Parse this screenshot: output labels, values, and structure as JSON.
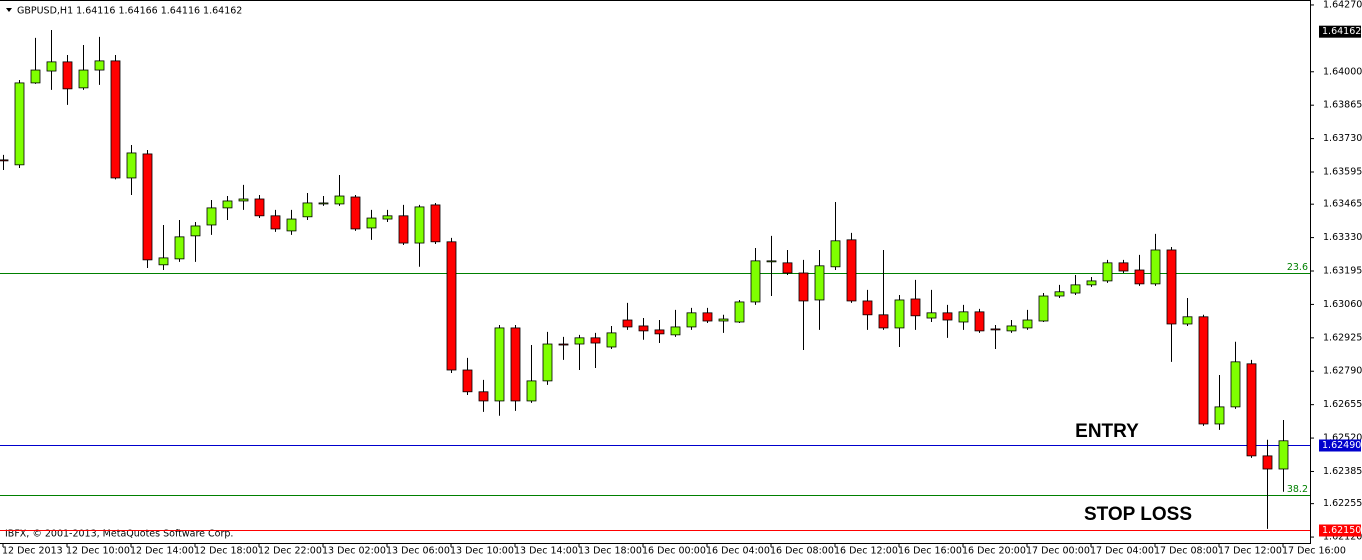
{
  "chart_data": {
    "type": "candlestick",
    "title": "GBPUSD,H1  1.64116 1.64166 1.64116 1.64162",
    "footer": "IBFX, © 2001-2013, MetaQuotes Software Corp.",
    "annotations": [
      "ENTRY",
      "STOP LOSS"
    ],
    "up_color": "#7fff00",
    "down_color": "#ff0000",
    "categories": [
      "12 Dec 2013",
      null,
      null,
      null,
      "12 Dec 10:00",
      null,
      null,
      null,
      "12 Dec 14:00",
      null,
      null,
      null,
      "12 Dec 18:00",
      null,
      null,
      null,
      "12 Dec 22:00",
      null,
      null,
      null,
      "13 Dec 02:00",
      null,
      null,
      null,
      "13 Dec 06:00",
      null,
      null,
      null,
      "13 Dec 10:00",
      null,
      null,
      null,
      "13 Dec 14:00",
      null,
      null,
      null,
      "13 Dec 18:00",
      null,
      null,
      null,
      "16 Dec 00:00",
      null,
      null,
      null,
      "16 Dec 04:00",
      null,
      null,
      null,
      "16 Dec 08:00",
      null,
      null,
      null,
      "16 Dec 12:00",
      null,
      null,
      null,
      "16 Dec 16:00",
      null,
      null,
      null,
      "16 Dec 20:00",
      null,
      null,
      null,
      "17 Dec 00:00",
      null,
      null,
      null,
      "17 Dec 04:00",
      null,
      null,
      null,
      "17 Dec 08:00",
      null,
      null,
      null,
      "17 Dec 12:00",
      null,
      null,
      null,
      "17 Dec 16:00"
    ],
    "open": [
      1.63644,
      1.63624,
      1.63955,
      1.64003,
      1.6404,
      1.63935,
      1.64007,
      1.64044,
      1.63571,
      1.63668,
      1.6322,
      1.63244,
      1.63337,
      1.63381,
      1.6345,
      1.63478,
      1.63486,
      1.63418,
      1.63357,
      1.63414,
      1.63466,
      1.63466,
      1.63494,
      1.63369,
      1.63405,
      1.63418,
      1.63308,
      1.63462,
      1.63313,
      1.62795,
      1.62707,
      1.6267,
      1.62965,
      1.6267,
      1.62751,
      1.629,
      1.629,
      1.62925,
      1.62888,
      1.62997,
      1.62973,
      1.62957,
      1.62937,
      1.62969,
      1.63026,
      1.62993,
      1.62989,
      1.6307,
      1.63232,
      1.63228,
      1.63187,
      1.63078,
      1.63212,
      1.63321,
      1.63074,
      1.63018,
      1.62965,
      1.63082,
      1.63005,
      1.63026,
      1.62989,
      1.6303,
      1.62961,
      1.62953,
      1.62965,
      1.62993,
      1.63094,
      1.63106,
      1.63139,
      1.63155,
      1.63228,
      1.63199,
      1.63143,
      1.6328,
      1.62981,
      1.6301,
      1.62577,
      1.62646,
      1.6282,
      1.62448,
      1.62395
    ],
    "high": [
      1.63664,
      1.63967,
      1.64137,
      1.64169,
      1.64068,
      1.64108,
      1.64141,
      1.64068,
      1.63704,
      1.63684,
      1.63381,
      1.63401,
      1.63393,
      1.63482,
      1.63498,
      1.63543,
      1.63502,
      1.63442,
      1.63442,
      1.6351,
      1.63498,
      1.63583,
      1.63502,
      1.63442,
      1.63442,
      1.63462,
      1.63462,
      1.6347,
      1.63329,
      1.62844,
      1.62755,
      1.62977,
      1.62977,
      1.62896,
      1.62949,
      1.62929,
      1.62937,
      1.62945,
      1.62973,
      1.63066,
      1.63005,
      1.62997,
      1.63038,
      1.63046,
      1.63046,
      1.63018,
      1.63078,
      1.63288,
      1.63337,
      1.6328,
      1.6324,
      1.6328,
      1.63474,
      1.63349,
      1.63119,
      1.6328,
      1.63098,
      1.63159,
      1.63119,
      1.63058,
      1.63058,
      1.63042,
      1.62977,
      1.62997,
      1.63038,
      1.63106,
      1.63139,
      1.63179,
      1.63171,
      1.6324,
      1.6324,
      1.6326,
      1.63345,
      1.63292,
      1.63086,
      1.63018,
      1.62775,
      1.62909,
      1.62836,
      1.62513,
      1.62593
    ],
    "low": [
      1.63603,
      1.63611,
      1.63951,
      1.63927,
      1.63866,
      1.63927,
      1.63947,
      1.63565,
      1.63502,
      1.63207,
      1.63199,
      1.63232,
      1.63232,
      1.63341,
      1.63401,
      1.63442,
      1.63409,
      1.63353,
      1.63341,
      1.63401,
      1.63458,
      1.63458,
      1.63357,
      1.63321,
      1.63393,
      1.633,
      1.63212,
      1.63304,
      1.62783,
      1.62694,
      1.62626,
      1.6261,
      1.6263,
      1.62662,
      1.62735,
      1.62836,
      1.62795,
      1.62803,
      1.6288,
      1.62957,
      1.62917,
      1.62904,
      1.62929,
      1.62957,
      1.62985,
      1.62945,
      1.62985,
      1.63058,
      1.63094,
      1.63179,
      1.62876,
      1.62957,
      1.63199,
      1.63066,
      1.62957,
      1.62957,
      1.62888,
      1.62957,
      1.62989,
      1.62925,
      1.62957,
      1.62945,
      1.6288,
      1.62945,
      1.62957,
      1.62989,
      1.63086,
      1.63098,
      1.63131,
      1.63147,
      1.63187,
      1.63135,
      1.63135,
      1.62828,
      1.62973,
      1.62569,
      1.62553,
      1.62638,
      1.6244,
      1.62153,
      1.62303
    ],
    "close": [
      1.6364,
      1.63955,
      1.64007,
      1.6404,
      1.63931,
      1.64007,
      1.64044,
      1.63571,
      1.63672,
      1.6324,
      1.63248,
      1.63333,
      1.63377,
      1.6345,
      1.63478,
      1.63486,
      1.63418,
      1.63365,
      1.63405,
      1.6347,
      1.6347,
      1.63498,
      1.63365,
      1.63409,
      1.63418,
      1.63308,
      1.63454,
      1.63313,
      1.62795,
      1.62707,
      1.6267,
      1.62965,
      1.6267,
      1.62751,
      1.629,
      1.62898,
      1.62925,
      1.62904,
      1.62945,
      1.62969,
      1.62953,
      1.62941,
      1.62969,
      1.63026,
      1.62993,
      1.63001,
      1.6307,
      1.63236,
      1.63236,
      1.63187,
      1.63074,
      1.63216,
      1.63317,
      1.63074,
      1.63018,
      1.62965,
      1.63078,
      1.63014,
      1.63026,
      1.62997,
      1.6303,
      1.62953,
      1.62957,
      1.62973,
      1.62997,
      1.63094,
      1.63111,
      1.63139,
      1.63155,
      1.63228,
      1.63195,
      1.63143,
      1.6328,
      1.62981,
      1.6301,
      1.62577,
      1.62646,
      1.62828,
      1.62448,
      1.62395,
      1.62509
    ],
    "ylim": [
      1.62096,
      1.6429
    ],
    "yticks": [
      {
        "value": 1.6427,
        "label": "1.64270"
      },
      {
        "value": 1.64,
        "label": "1.64000"
      },
      {
        "value": 1.63865,
        "label": "1.63865"
      },
      {
        "value": 1.6373,
        "label": "1.63730"
      },
      {
        "value": 1.63595,
        "label": "1.63595"
      },
      {
        "value": 1.63465,
        "label": "1.63465"
      },
      {
        "value": 1.6333,
        "label": "1.63330"
      },
      {
        "value": 1.63195,
        "label": "1.63195"
      },
      {
        "value": 1.6306,
        "label": "1.63060"
      },
      {
        "value": 1.62925,
        "label": "1.62925"
      },
      {
        "value": 1.6279,
        "label": "1.62790"
      },
      {
        "value": 1.62655,
        "label": "1.62655"
      },
      {
        "value": 1.6252,
        "label": "1.62520"
      },
      {
        "value": 1.62385,
        "label": "1.62385"
      },
      {
        "value": 1.62255,
        "label": "1.62255"
      },
      {
        "value": 1.6212,
        "label": "1.62120"
      }
    ],
    "hlines": [
      {
        "value": 1.63187,
        "color": "#008000",
        "label": "23.6"
      },
      {
        "value": 1.62289,
        "color": "#008000",
        "label": "38.2"
      },
      {
        "value": 1.6249,
        "color": "#0000cd",
        "tag": "1.62490"
      },
      {
        "value": 1.6215,
        "color": "#ff0000",
        "tag": "1.62150"
      }
    ],
    "bid": {
      "value": 1.64162,
      "label": "1.64162",
      "color": "#000000"
    }
  }
}
